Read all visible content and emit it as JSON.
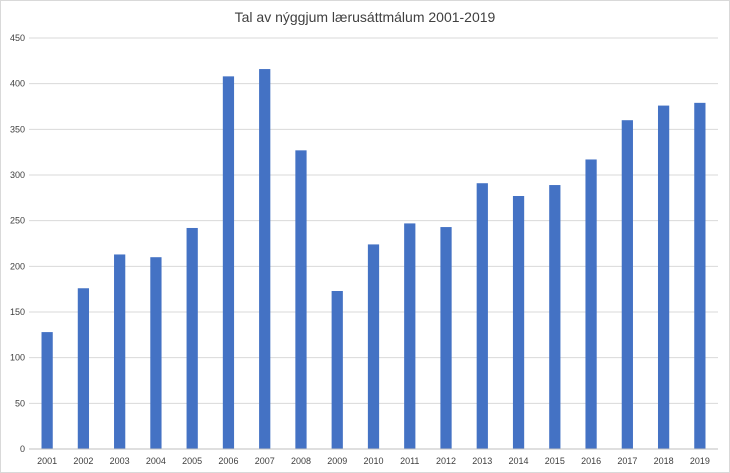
{
  "chart_data": {
    "type": "bar",
    "title": "Tal av nýggjum lærusáttmálum 2001-2019",
    "xlabel": "",
    "ylabel": "",
    "categories": [
      "2001",
      "2002",
      "2003",
      "2004",
      "2005",
      "2006",
      "2007",
      "2008",
      "2009",
      "2010",
      "2011",
      "2012",
      "2013",
      "2014",
      "2015",
      "2016",
      "2017",
      "2018",
      "2019"
    ],
    "values": [
      128,
      176,
      213,
      210,
      242,
      408,
      416,
      327,
      173,
      224,
      247,
      243,
      291,
      277,
      289,
      317,
      360,
      376,
      379
    ],
    "ylim": [
      0,
      450
    ],
    "yticks": [
      0,
      50,
      100,
      150,
      200,
      250,
      300,
      350,
      400,
      450
    ],
    "grid": true,
    "legend": "none",
    "bar_color": "#4472c4"
  }
}
